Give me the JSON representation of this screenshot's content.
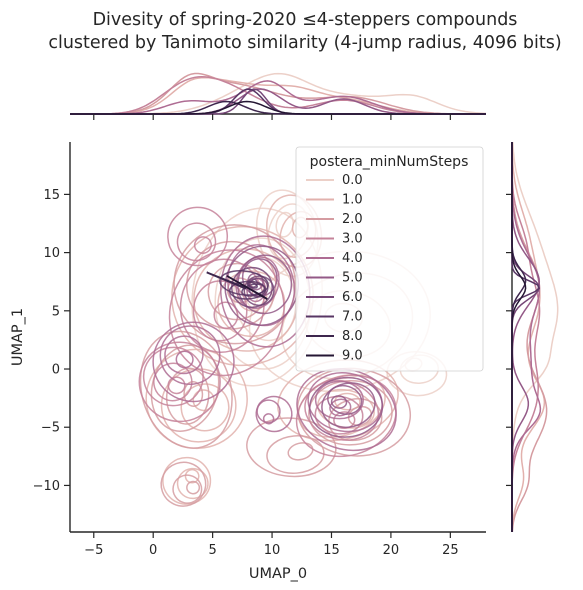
{
  "chart_data": {
    "type": "kde-jointplot",
    "title": "Divesity of spring-2020 ≤4-steppers compounds\nclustered by Tanimoto similarity (4-jump radius, 4096 bits)",
    "xlabel": "UMAP_0",
    "ylabel": "UMAP_1",
    "xlim": [
      -7,
      28
    ],
    "ylim": [
      -14,
      19.5
    ],
    "x_ticks": [
      -5,
      0,
      5,
      10,
      15,
      20,
      25
    ],
    "y_ticks": [
      -10,
      -5,
      0,
      5,
      10,
      15
    ],
    "grid": false,
    "legend": {
      "title": "postera_minNumSteps",
      "placement": "top-right",
      "entries": [
        "0.0",
        "1.0",
        "2.0",
        "3.0",
        "4.0",
        "5.0",
        "6.0",
        "7.0",
        "8.0",
        "9.0"
      ]
    },
    "series": [
      {
        "name": "0.0",
        "color": "#ecd0c8",
        "clusters": [
          {
            "cx": 9,
            "cy": 6,
            "sx": 3.2,
            "sy": 4.5,
            "w": 1.0
          },
          {
            "cx": 16,
            "cy": 4,
            "sx": 4.5,
            "sy": 3.5,
            "w": 0.7
          },
          {
            "cx": 22,
            "cy": 0,
            "sx": 2.0,
            "sy": 1.5,
            "w": 0.45
          },
          {
            "cx": 11,
            "cy": 12,
            "sx": 2.0,
            "sy": 3.0,
            "w": 0.4
          }
        ]
      },
      {
        "name": "1.0",
        "color": "#e2b1ad",
        "clusters": [
          {
            "cx": 8,
            "cy": 6,
            "sx": 3.5,
            "sy": 3.5,
            "w": 1.0
          },
          {
            "cx": 4,
            "cy": -3,
            "sx": 2.5,
            "sy": 2.5,
            "w": 0.6
          },
          {
            "cx": 16,
            "cy": -3,
            "sx": 3.0,
            "sy": 2.0,
            "w": 0.55
          },
          {
            "cx": 3,
            "cy": -9.5,
            "sx": 1.6,
            "sy": 1.6,
            "w": 0.4
          },
          {
            "cx": 12,
            "cy": 12,
            "sx": 1.8,
            "sy": 2.5,
            "w": 0.35
          }
        ]
      },
      {
        "name": "2.0",
        "color": "#d59ca1",
        "clusters": [
          {
            "cx": 7,
            "cy": 7,
            "sx": 3.0,
            "sy": 3.0,
            "w": 1.0
          },
          {
            "cx": 3,
            "cy": -2,
            "sx": 2.2,
            "sy": 3.0,
            "w": 0.7
          },
          {
            "cx": 17,
            "cy": -4,
            "sx": 2.8,
            "sy": 2.2,
            "w": 0.6
          },
          {
            "cx": 3,
            "cy": -10,
            "sx": 1.5,
            "sy": 1.5,
            "w": 0.45
          },
          {
            "cx": 12,
            "cy": -7,
            "sx": 3.0,
            "sy": 2.0,
            "w": 0.3
          }
        ]
      },
      {
        "name": "3.0",
        "color": "#c5839a",
        "clusters": [
          {
            "cx": 6,
            "cy": 5,
            "sx": 2.8,
            "sy": 3.2,
            "w": 1.0
          },
          {
            "cx": 2,
            "cy": -1,
            "sx": 2.0,
            "sy": 2.0,
            "w": 0.6
          },
          {
            "cx": 16,
            "cy": -4,
            "sx": 2.5,
            "sy": 2.0,
            "w": 0.55
          },
          {
            "cx": 4,
            "cy": 11,
            "sx": 2.0,
            "sy": 2.0,
            "w": 0.35
          }
        ]
      },
      {
        "name": "4.0",
        "color": "#ae6c93",
        "clusters": [
          {
            "cx": 9,
            "cy": 7,
            "sx": 2.2,
            "sy": 2.8,
            "w": 1.0
          },
          {
            "cx": 16,
            "cy": -3,
            "sx": 2.5,
            "sy": 2.0,
            "w": 0.7
          },
          {
            "cx": 3,
            "cy": 1,
            "sx": 2.0,
            "sy": 2.0,
            "w": 0.5
          },
          {
            "cx": 10,
            "cy": -4,
            "sx": 1.2,
            "sy": 1.2,
            "w": 0.35
          }
        ]
      },
      {
        "name": "5.0",
        "color": "#935987",
        "clusters": [
          {
            "cx": 9,
            "cy": 7.5,
            "sx": 1.8,
            "sy": 2.0,
            "w": 1.0
          },
          {
            "cx": 16,
            "cy": -3,
            "sx": 1.8,
            "sy": 1.5,
            "w": 0.6
          }
        ]
      },
      {
        "name": "6.0",
        "color": "#754677",
        "clusters": [
          {
            "cx": 8.5,
            "cy": 7,
            "sx": 1.0,
            "sy": 1.0,
            "w": 1.0
          }
        ]
      },
      {
        "name": "7.0",
        "color": "#583664",
        "clusters": [
          {
            "cx": 8,
            "cy": 7,
            "sx": 1.2,
            "sy": 0.6,
            "w": 1.0
          }
        ]
      },
      {
        "name": "8.0",
        "color": "#3d264d",
        "segment": [
          [
            4.5,
            8.3
          ],
          [
            7.8,
            6.9
          ]
        ]
      },
      {
        "name": "9.0",
        "color": "#241633",
        "segment": [
          [
            6.2,
            8.0
          ],
          [
            9.6,
            6.0
          ]
        ]
      }
    ]
  }
}
